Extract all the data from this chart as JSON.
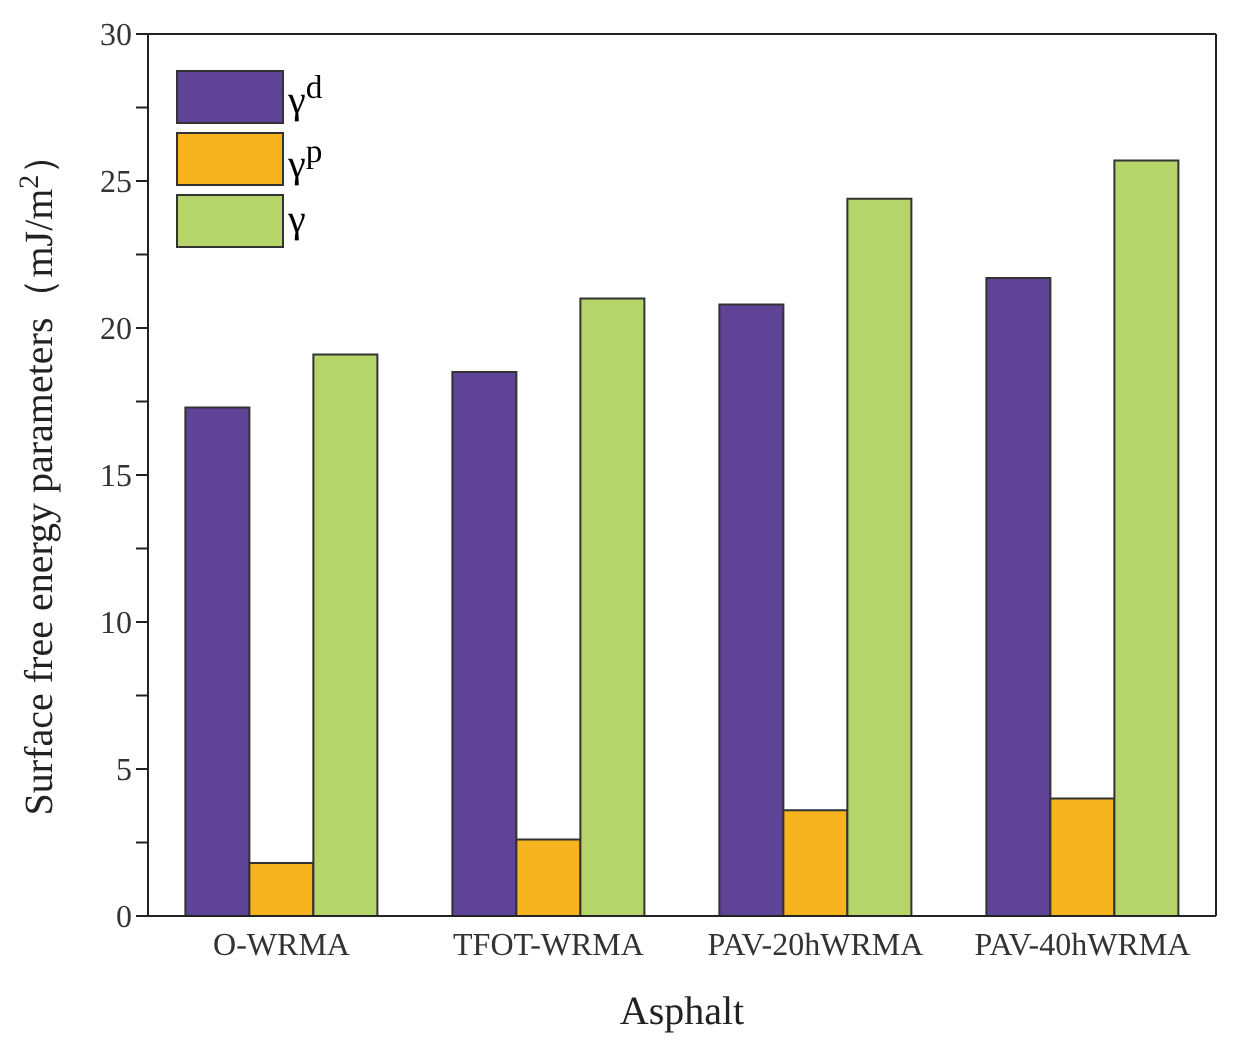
{
  "chart_data": {
    "type": "bar",
    "xlabel": "Asphalt",
    "ylabel": "Surface free energy parameters（mJ/m$^{2}$）",
    "categories": [
      "O-WRMA",
      "TFOT-WRMA",
      "PAV-20hWRMA",
      "PAV-40hWRMA"
    ],
    "series": [
      {
        "name": "γ$^{d}$",
        "color": "#5f4397",
        "values": [
          17.3,
          18.5,
          20.8,
          21.7
        ]
      },
      {
        "name": "γ$^{p}$",
        "color": "#f7b41f",
        "values": [
          1.8,
          2.6,
          3.6,
          4.0
        ]
      },
      {
        "name": "γ",
        "color": "#b5d56a",
        "values": [
          19.1,
          21.0,
          24.4,
          25.7
        ]
      }
    ],
    "ylim": [
      0,
      30
    ],
    "yticks": [
      0,
      {
        "value": 2.5,
        "label": null
      },
      5,
      {
        "value": 7.5,
        "label": null
      },
      10,
      {
        "value": 12.5,
        "label": null
      },
      15,
      {
        "value": 17.5,
        "label": null
      },
      20,
      {
        "value": 22.5,
        "label": null
      },
      25,
      {
        "value": 27.5,
        "label": null
      },
      30
    ],
    "grid": false,
    "legend": "top left"
  }
}
